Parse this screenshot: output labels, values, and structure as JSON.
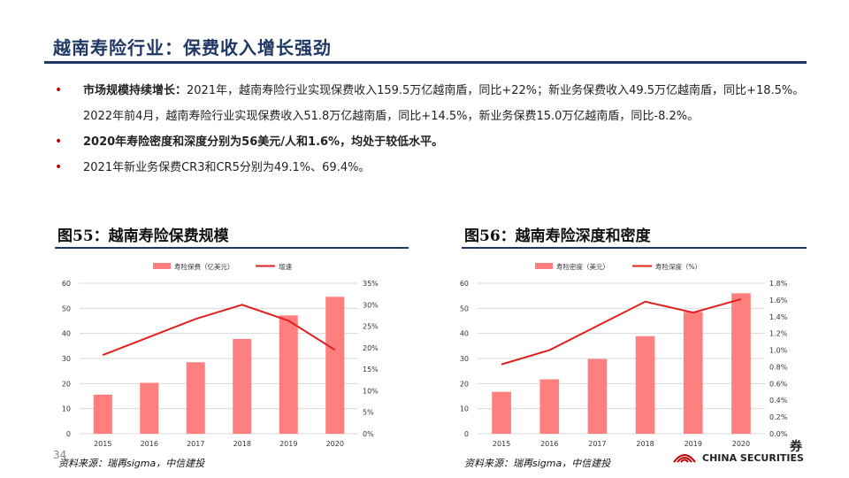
{
  "header": {
    "title": "越南寿险行业：保费收入增长强劲"
  },
  "bullets": [
    {
      "bold": "市场规模持续增长：",
      "text": "2021年，越南寿险行业实现保费收入159.5万亿越南盾，同比+22%；新业务保费收入49.5万亿越南盾，同比+18.5%。2022年前4月，越南寿险行业实现保费收入51.8万亿越南盾，同比+14.5%，新业务保费15.0万亿越南盾，同比-8.2%。"
    },
    {
      "bold": "2020年寿险密度和深度分别为56美元/人和1.6%，均处于较低水平。",
      "text": ""
    },
    {
      "bold": "",
      "text": "2021年新业务保费CR3和CR5分别为49.1%、69.4%。"
    }
  ],
  "bullet_marker": "•",
  "figures": [
    {
      "title": "图55：越南寿险保费规模",
      "source": "资料来源：瑞再sigma，中信建投"
    },
    {
      "title": "图56：越南寿险深度和密度",
      "source": "资料来源：瑞再sigma，中信建投"
    }
  ],
  "footer": {
    "page_number": "34",
    "logo_text": "CHINA SECURITIES",
    "partial_char": "券"
  },
  "colors": {
    "bar": "#ff7f7f",
    "line": "#e0201c",
    "title": "#1f3864",
    "bullet": "#c00000"
  },
  "chart_data": [
    {
      "type": "bar",
      "categories": [
        "2015",
        "2016",
        "2017",
        "2018",
        "2019",
        "2020"
      ],
      "series": [
        {
          "name": "寿险保费（亿美元）",
          "kind": "bar",
          "axis": "left",
          "values": [
            15.6,
            20.3,
            28.5,
            37.8,
            47.2,
            54.6
          ]
        },
        {
          "name": "增速",
          "kind": "line",
          "axis": "right",
          "values": [
            0.183,
            0.225,
            0.267,
            0.3,
            0.263,
            0.195
          ]
        }
      ],
      "ylim": [
        0,
        60
      ],
      "yticks": [
        "0",
        "10",
        "20",
        "30",
        "40",
        "50",
        "60"
      ],
      "y2lim": [
        0,
        0.35
      ],
      "y2ticks": [
        "0%",
        "5%",
        "10%",
        "15%",
        "20%",
        "25%",
        "30%",
        "35%"
      ],
      "legend": "top"
    },
    {
      "type": "bar",
      "categories": [
        "2015",
        "2016",
        "2017",
        "2018",
        "2019",
        "2020"
      ],
      "series": [
        {
          "name": "寿险密度（美元）",
          "kind": "bar",
          "axis": "left",
          "values": [
            16.7,
            21.7,
            29.8,
            38.9,
            48.6,
            56.0
          ]
        },
        {
          "name": "寿险深度（%）",
          "kind": "line",
          "axis": "right",
          "values": [
            0.83,
            1.0,
            1.29,
            1.58,
            1.45,
            1.61
          ]
        }
      ],
      "ylim": [
        0,
        60
      ],
      "yticks": [
        "0",
        "10",
        "20",
        "30",
        "40",
        "50",
        "60"
      ],
      "y2lim": [
        0,
        1.8
      ],
      "y2ticks": [
        "0.0%",
        "0.2%",
        "0.4%",
        "0.6%",
        "0.8%",
        "1.0%",
        "1.2%",
        "1.4%",
        "1.6%",
        "1.8%"
      ],
      "legend": "top"
    }
  ]
}
